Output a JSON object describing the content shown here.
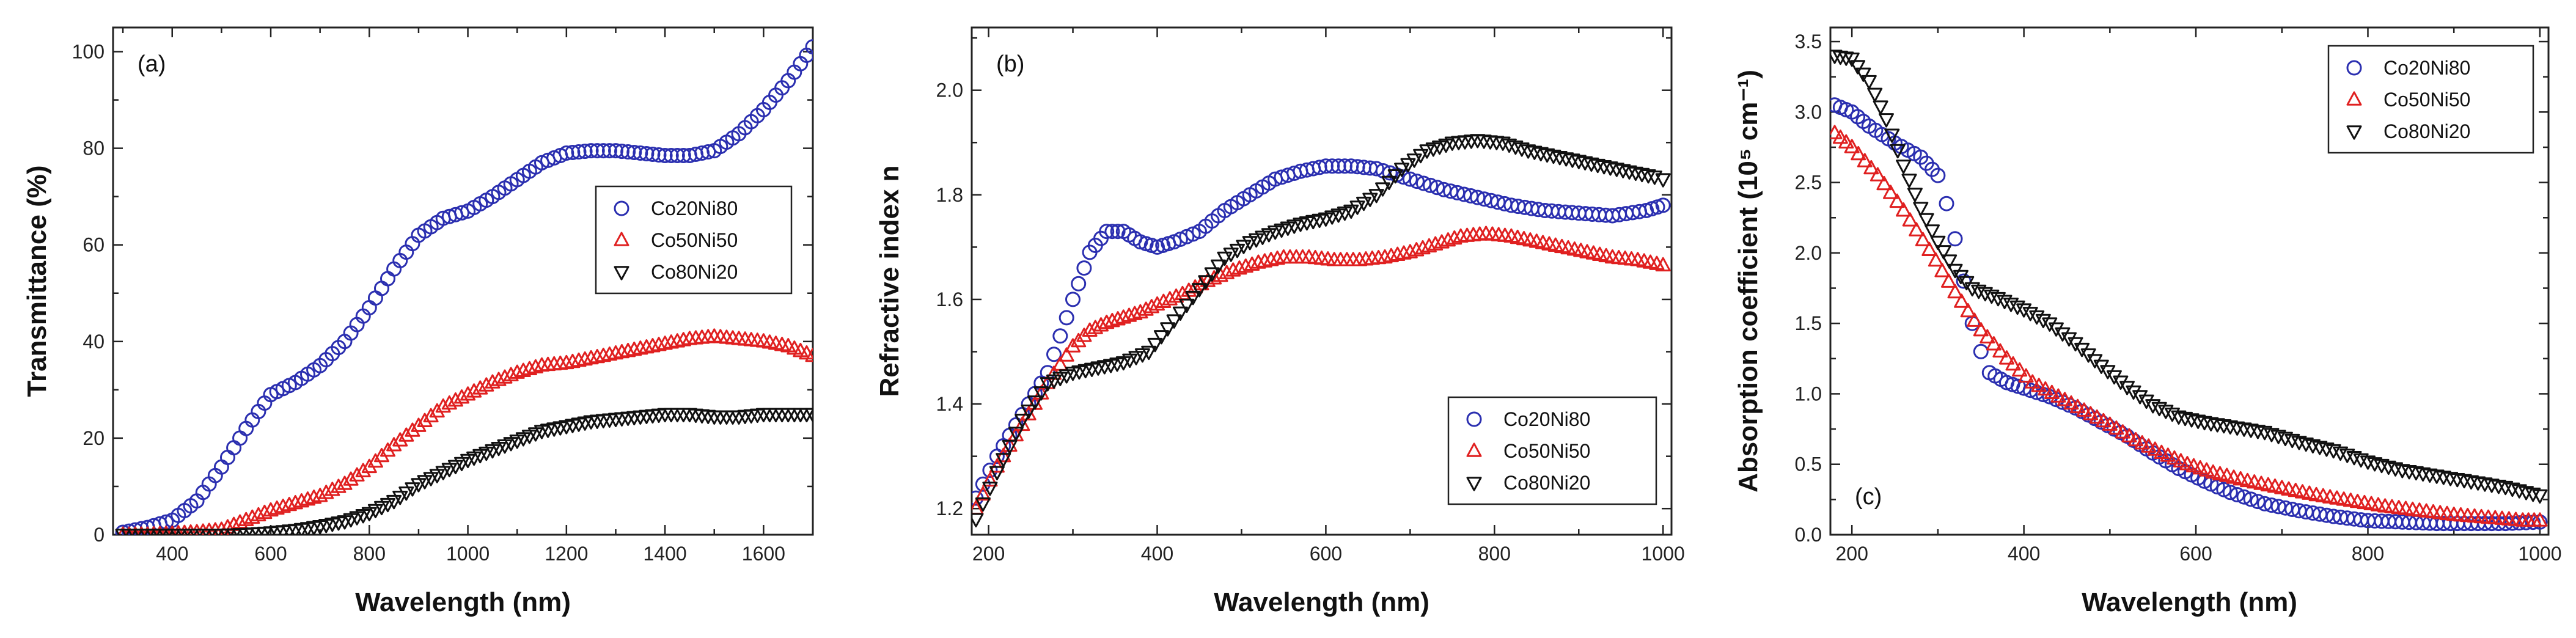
{
  "chart_data": [
    {
      "type": "scatter",
      "panel_label": "(a)",
      "xlabel": "Wavelength (nm)",
      "ylabel": "Transmittance (%)",
      "xlim": [
        280,
        1700
      ],
      "ylim": [
        0,
        105
      ],
      "xticks": [
        400,
        600,
        800,
        1000,
        1200,
        1400,
        1600
      ],
      "yticks": [
        0,
        20,
        40,
        60,
        80,
        100
      ],
      "legend_position": "middle-right",
      "series": [
        {
          "name": "Co20Ni80",
          "marker": "circle",
          "color": "#2b2fb0",
          "x": [
            300,
            350,
            400,
            450,
            500,
            550,
            600,
            650,
            700,
            750,
            800,
            850,
            900,
            950,
            1000,
            1050,
            1100,
            1150,
            1200,
            1250,
            1300,
            1350,
            1400,
            1450,
            1500,
            1550,
            1600,
            1650,
            1700
          ],
          "y": [
            0.5,
            1.5,
            3,
            7,
            14,
            22,
            29,
            31.5,
            35,
            40,
            47,
            55,
            62,
            65.5,
            67,
            70,
            73.5,
            77,
            79,
            79.5,
            79.5,
            79,
            78.5,
            78.5,
            79.5,
            83,
            88,
            94,
            101
          ]
        },
        {
          "name": "Co50Ni50",
          "marker": "triangle-up",
          "color": "#e02020",
          "x": [
            300,
            350,
            400,
            450,
            500,
            550,
            600,
            650,
            700,
            750,
            800,
            850,
            900,
            950,
            1000,
            1050,
            1100,
            1150,
            1200,
            1250,
            1300,
            1350,
            1400,
            1450,
            1500,
            1550,
            1600,
            1650,
            1700
          ],
          "y": [
            0,
            0,
            0.2,
            0.5,
            1,
            3,
            5,
            6.5,
            8,
            10.5,
            14,
            18.5,
            22.5,
            26.5,
            29,
            31.5,
            33.5,
            35,
            35.5,
            36.5,
            37.5,
            38.5,
            39.5,
            40.5,
            41,
            40.5,
            40,
            39,
            37
          ]
        },
        {
          "name": "Co80Ni20",
          "marker": "triangle-down",
          "color": "#111111",
          "x": [
            300,
            350,
            400,
            450,
            500,
            550,
            600,
            650,
            700,
            750,
            800,
            850,
            900,
            950,
            1000,
            1050,
            1100,
            1150,
            1200,
            1250,
            1300,
            1350,
            1400,
            1450,
            1500,
            1550,
            1600,
            1650,
            1700
          ],
          "y": [
            0,
            0,
            0,
            0,
            0,
            0.2,
            0.5,
            1,
            1.8,
            2.8,
            4.5,
            7,
            10.5,
            13,
            15.5,
            17.5,
            19.5,
            21.5,
            22.5,
            23.5,
            24,
            24.5,
            25,
            25,
            24.5,
            24.5,
            25,
            25,
            25
          ]
        }
      ]
    },
    {
      "type": "scatter",
      "panel_label": "(b)",
      "xlabel": "Wavelength (nm)",
      "ylabel": "Refractive index n",
      "xlim": [
        180,
        1010
      ],
      "ylim": [
        1.15,
        2.12
      ],
      "xticks": [
        200,
        400,
        600,
        800,
        1000
      ],
      "yticks": [
        1.2,
        1.4,
        1.6,
        1.8,
        2.0
      ],
      "legend_position": "bottom-right",
      "series": [
        {
          "name": "Co20Ni80",
          "marker": "circle",
          "color": "#2b2fb0",
          "x": [
            185,
            210,
            240,
            270,
            300,
            320,
            340,
            360,
            380,
            400,
            420,
            450,
            480,
            510,
            540,
            570,
            600,
            630,
            660,
            700,
            740,
            780,
            820,
            860,
            900,
            940,
            980,
            1000
          ],
          "y": [
            1.22,
            1.3,
            1.38,
            1.46,
            1.6,
            1.69,
            1.73,
            1.73,
            1.71,
            1.7,
            1.71,
            1.73,
            1.77,
            1.8,
            1.83,
            1.845,
            1.855,
            1.855,
            1.85,
            1.83,
            1.81,
            1.795,
            1.78,
            1.77,
            1.765,
            1.76,
            1.77,
            1.78
          ]
        },
        {
          "name": "Co50Ni50",
          "marker": "triangle-up",
          "color": "#e02020",
          "x": [
            185,
            210,
            240,
            270,
            300,
            320,
            340,
            360,
            380,
            400,
            430,
            460,
            490,
            520,
            550,
            580,
            610,
            640,
            670,
            700,
            730,
            760,
            790,
            820,
            850,
            880,
            910,
            940,
            970,
            1000
          ],
          "y": [
            1.2,
            1.28,
            1.36,
            1.44,
            1.51,
            1.54,
            1.555,
            1.565,
            1.575,
            1.59,
            1.61,
            1.635,
            1.655,
            1.67,
            1.68,
            1.68,
            1.675,
            1.675,
            1.68,
            1.69,
            1.705,
            1.72,
            1.725,
            1.72,
            1.71,
            1.7,
            1.69,
            1.68,
            1.675,
            1.665
          ]
        },
        {
          "name": "Co80Ni20",
          "marker": "triangle-down",
          "color": "#111111",
          "x": [
            185,
            210,
            240,
            270,
            300,
            330,
            360,
            390,
            420,
            450,
            480,
            510,
            540,
            570,
            600,
            630,
            660,
            690,
            720,
            750,
            780,
            810,
            840,
            870,
            900,
            930,
            960,
            990,
            1000
          ],
          "y": [
            1.18,
            1.27,
            1.37,
            1.44,
            1.46,
            1.47,
            1.48,
            1.5,
            1.56,
            1.62,
            1.68,
            1.71,
            1.73,
            1.745,
            1.755,
            1.77,
            1.8,
            1.85,
            1.885,
            1.9,
            1.905,
            1.9,
            1.885,
            1.875,
            1.865,
            1.855,
            1.845,
            1.835,
            1.83
          ]
        }
      ]
    },
    {
      "type": "scatter",
      "panel_label": "(c)",
      "xlabel": "Wavelength (nm)",
      "ylabel": "Absorption coefficient (10⁵ cm⁻¹)",
      "xlim": [
        175,
        1010
      ],
      "ylim": [
        0,
        3.6
      ],
      "xticks": [
        200,
        400,
        600,
        800,
        1000
      ],
      "yticks": [
        0.0,
        0.5,
        1.0,
        1.5,
        2.0,
        2.5,
        3.0,
        3.5
      ],
      "legend_position": "top-right",
      "series": [
        {
          "name": "Co20Ni80",
          "marker": "circle",
          "color": "#2b2fb0",
          "x": [
            180,
            200,
            220,
            250,
            280,
            300,
            310,
            320,
            330,
            340,
            350,
            360,
            380,
            400,
            430,
            460,
            490,
            520,
            550,
            580,
            610,
            640,
            680,
            720,
            760,
            800,
            840,
            880,
            920,
            960,
            1000
          ],
          "y": [
            3.05,
            3.0,
            2.9,
            2.78,
            2.68,
            2.55,
            2.35,
            2.1,
            1.8,
            1.5,
            1.3,
            1.15,
            1.08,
            1.04,
            0.98,
            0.9,
            0.8,
            0.7,
            0.58,
            0.47,
            0.38,
            0.3,
            0.22,
            0.17,
            0.13,
            0.1,
            0.09,
            0.08,
            0.08,
            0.08,
            0.09
          ]
        },
        {
          "name": "Co50Ni50",
          "marker": "triangle-up",
          "color": "#e02020",
          "x": [
            180,
            200,
            230,
            260,
            290,
            320,
            350,
            380,
            410,
            440,
            470,
            500,
            530,
            560,
            590,
            620,
            660,
            700,
            740,
            780,
            820,
            860,
            900,
            940,
            980,
            1000
          ],
          "y": [
            2.85,
            2.75,
            2.55,
            2.3,
            2.02,
            1.72,
            1.45,
            1.25,
            1.08,
            0.98,
            0.88,
            0.78,
            0.67,
            0.58,
            0.5,
            0.44,
            0.38,
            0.33,
            0.28,
            0.24,
            0.2,
            0.17,
            0.14,
            0.12,
            0.1,
            0.1
          ]
        },
        {
          "name": "Co80Ni20",
          "marker": "triangle-down",
          "color": "#111111",
          "x": [
            180,
            200,
            220,
            240,
            260,
            280,
            300,
            320,
            340,
            370,
            400,
            430,
            460,
            490,
            520,
            550,
            580,
            610,
            640,
            680,
            720,
            760,
            800,
            840,
            880,
            920,
            960,
            1000
          ],
          "y": [
            3.4,
            3.38,
            3.22,
            2.95,
            2.62,
            2.32,
            2.08,
            1.88,
            1.75,
            1.68,
            1.6,
            1.5,
            1.36,
            1.2,
            1.05,
            0.92,
            0.84,
            0.8,
            0.77,
            0.73,
            0.66,
            0.6,
            0.52,
            0.46,
            0.42,
            0.38,
            0.34,
            0.28
          ]
        }
      ]
    }
  ]
}
